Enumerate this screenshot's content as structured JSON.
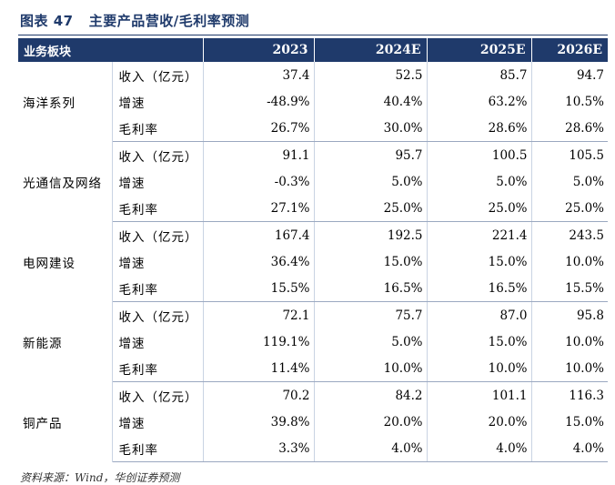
{
  "title": {
    "label": "图表 47",
    "text": "主要产品营收/毛利率预测"
  },
  "header": {
    "segment": "业务板块",
    "years": [
      "2023",
      "2024E",
      "2025E",
      "2026E"
    ]
  },
  "groups": [
    {
      "name": "海洋系列",
      "rows": [
        {
          "metric": "收入（亿元）",
          "values": [
            "37.4",
            "52.5",
            "85.7",
            "94.7"
          ]
        },
        {
          "metric": "增速",
          "values": [
            "-48.9%",
            "40.4%",
            "63.2%",
            "10.5%"
          ]
        },
        {
          "metric": "毛利率",
          "values": [
            "26.7%",
            "30.0%",
            "28.6%",
            "28.6%"
          ]
        }
      ]
    },
    {
      "name": "光通信及网络",
      "rows": [
        {
          "metric": "收入（亿元）",
          "values": [
            "91.1",
            "95.7",
            "100.5",
            "105.5"
          ]
        },
        {
          "metric": "增速",
          "values": [
            "-0.3%",
            "5.0%",
            "5.0%",
            "5.0%"
          ]
        },
        {
          "metric": "毛利率",
          "values": [
            "27.1%",
            "25.0%",
            "25.0%",
            "25.0%"
          ]
        }
      ]
    },
    {
      "name": "电网建设",
      "rows": [
        {
          "metric": "收入（亿元）",
          "values": [
            "167.4",
            "192.5",
            "221.4",
            "243.5"
          ]
        },
        {
          "metric": "增速",
          "values": [
            "36.4%",
            "15.0%",
            "15.0%",
            "10.0%"
          ]
        },
        {
          "metric": "毛利率",
          "values": [
            "15.5%",
            "16.5%",
            "16.5%",
            "15.5%"
          ]
        }
      ]
    },
    {
      "name": "新能源",
      "rows": [
        {
          "metric": "收入（亿元）",
          "values": [
            "72.1",
            "75.7",
            "87.0",
            "95.8"
          ]
        },
        {
          "metric": "增速",
          "values": [
            "119.1%",
            "5.0%",
            "15.0%",
            "10.0%"
          ]
        },
        {
          "metric": "毛利率",
          "values": [
            "11.4%",
            "10.0%",
            "10.0%",
            "10.0%"
          ]
        }
      ]
    },
    {
      "name": "铜产品",
      "rows": [
        {
          "metric": "收入（亿元）",
          "values": [
            "70.2",
            "84.2",
            "101.1",
            "116.3"
          ]
        },
        {
          "metric": "增速",
          "values": [
            "39.8%",
            "20.0%",
            "20.0%",
            "15.0%"
          ]
        },
        {
          "metric": "毛利率",
          "values": [
            "3.3%",
            "4.0%",
            "4.0%",
            "4.0%"
          ]
        }
      ]
    }
  ],
  "source": "资料来源：Wind，华创证券预测",
  "colors": {
    "header_bg": "#1f3a6b",
    "title": "#1f3a6b"
  }
}
